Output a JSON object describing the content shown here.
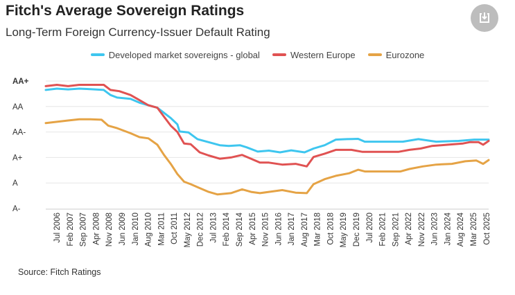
{
  "title": "Fitch's Average Sovereign Ratings",
  "subtitle": "Long-Term Foreign Currency-Issuer Default Rating",
  "source": "Source: Fitch Ratings",
  "download_icon": "download-icon",
  "legend": [
    {
      "label": "Developed market sovereigns - global",
      "color": "#3ec6ef"
    },
    {
      "label": "Western Europe",
      "color": "#e05252"
    },
    {
      "label": "Eurozone",
      "color": "#e5a345"
    }
  ],
  "chart_data": {
    "type": "line",
    "title": "Fitch's Average Sovereign Ratings",
    "subtitle": "Long-Term Foreign Currency-Issuer Default Rating",
    "xlabel": "",
    "ylabel": "",
    "xlim": [
      2006.0,
      2025.85
    ],
    "ylim": [
      0,
      5
    ],
    "y_ticks": [
      {
        "value": 5,
        "label": "AA+"
      },
      {
        "value": 4,
        "label": "AA"
      },
      {
        "value": 3,
        "label": "AA-"
      },
      {
        "value": 2,
        "label": "A+"
      },
      {
        "value": 1,
        "label": "A"
      },
      {
        "value": 0,
        "label": "A-"
      }
    ],
    "x_ticks": [
      {
        "value": 2006.5,
        "label": "Jul 2006"
      },
      {
        "value": 2007.083,
        "label": "Feb 2007"
      },
      {
        "value": 2007.667,
        "label": "Sep 2007"
      },
      {
        "value": 2008.25,
        "label": "Apr 2008"
      },
      {
        "value": 2008.833,
        "label": "Nov 2008"
      },
      {
        "value": 2009.417,
        "label": "Jun 2009"
      },
      {
        "value": 2010.0,
        "label": "Jan 2010"
      },
      {
        "value": 2010.583,
        "label": "Aug 2010"
      },
      {
        "value": 2011.167,
        "label": "Mar 2011"
      },
      {
        "value": 2011.75,
        "label": "Oct 2011"
      },
      {
        "value": 2012.333,
        "label": "May 2012"
      },
      {
        "value": 2012.917,
        "label": "Dec 2012"
      },
      {
        "value": 2013.5,
        "label": "Jul 2013"
      },
      {
        "value": 2014.083,
        "label": "Feb 2014"
      },
      {
        "value": 2014.667,
        "label": "Sep 2014"
      },
      {
        "value": 2015.25,
        "label": "Apr 2015"
      },
      {
        "value": 2015.833,
        "label": "Nov 2015"
      },
      {
        "value": 2016.417,
        "label": "Jun 2016"
      },
      {
        "value": 2017.0,
        "label": "Jan 2017"
      },
      {
        "value": 2017.583,
        "label": "Aug 2017"
      },
      {
        "value": 2018.167,
        "label": "Mar 2018"
      },
      {
        "value": 2018.75,
        "label": "Oct 2018"
      },
      {
        "value": 2019.333,
        "label": "May 2019"
      },
      {
        "value": 2019.917,
        "label": "Dec 2019"
      },
      {
        "value": 2020.5,
        "label": "Jul 2020"
      },
      {
        "value": 2021.083,
        "label": "Feb 2021"
      },
      {
        "value": 2021.667,
        "label": "Sep 2021"
      },
      {
        "value": 2022.25,
        "label": "Apr 2022"
      },
      {
        "value": 2022.833,
        "label": "Nov 2022"
      },
      {
        "value": 2023.417,
        "label": "Jun 2023"
      },
      {
        "value": 2024.0,
        "label": "Jan 2024"
      },
      {
        "value": 2024.583,
        "label": "Aug 2024"
      },
      {
        "value": 2025.167,
        "label": "Mar 2025"
      },
      {
        "value": 2025.75,
        "label": "Oct 2025"
      }
    ],
    "grid": true,
    "legend_position": "top-center",
    "series": [
      {
        "name": "Developed market sovereigns - global",
        "color": "#3ec6ef",
        "points": [
          [
            2006.0,
            4.65
          ],
          [
            2006.5,
            4.7
          ],
          [
            2007.0,
            4.67
          ],
          [
            2007.5,
            4.7
          ],
          [
            2008.0,
            4.68
          ],
          [
            2008.6,
            4.65
          ],
          [
            2008.9,
            4.45
          ],
          [
            2009.2,
            4.35
          ],
          [
            2009.8,
            4.3
          ],
          [
            2010.2,
            4.15
          ],
          [
            2010.6,
            4.05
          ],
          [
            2011.0,
            3.95
          ],
          [
            2011.3,
            3.75
          ],
          [
            2011.6,
            3.55
          ],
          [
            2011.9,
            3.3
          ],
          [
            2012.0,
            3.02
          ],
          [
            2012.4,
            2.98
          ],
          [
            2012.8,
            2.72
          ],
          [
            2013.3,
            2.6
          ],
          [
            2013.8,
            2.48
          ],
          [
            2014.2,
            2.45
          ],
          [
            2014.7,
            2.48
          ],
          [
            2015.0,
            2.4
          ],
          [
            2015.5,
            2.23
          ],
          [
            2016.0,
            2.27
          ],
          [
            2016.5,
            2.2
          ],
          [
            2017.0,
            2.28
          ],
          [
            2017.6,
            2.2
          ],
          [
            2018.0,
            2.35
          ],
          [
            2018.5,
            2.48
          ],
          [
            2019.0,
            2.7
          ],
          [
            2019.5,
            2.72
          ],
          [
            2020.0,
            2.73
          ],
          [
            2020.3,
            2.62
          ],
          [
            2021.0,
            2.62
          ],
          [
            2022.0,
            2.62
          ],
          [
            2022.7,
            2.72
          ],
          [
            2023.5,
            2.62
          ],
          [
            2024.5,
            2.65
          ],
          [
            2025.2,
            2.7
          ],
          [
            2025.85,
            2.7
          ]
        ]
      },
      {
        "name": "Western Europe",
        "color": "#e05252",
        "points": [
          [
            2006.0,
            4.8
          ],
          [
            2006.5,
            4.85
          ],
          [
            2007.0,
            4.8
          ],
          [
            2007.5,
            4.85
          ],
          [
            2008.0,
            4.85
          ],
          [
            2008.6,
            4.85
          ],
          [
            2008.9,
            4.65
          ],
          [
            2009.3,
            4.6
          ],
          [
            2009.8,
            4.45
          ],
          [
            2010.2,
            4.25
          ],
          [
            2010.6,
            4.05
          ],
          [
            2011.0,
            3.95
          ],
          [
            2011.3,
            3.6
          ],
          [
            2011.6,
            3.25
          ],
          [
            2011.9,
            3.0
          ],
          [
            2012.2,
            2.55
          ],
          [
            2012.5,
            2.52
          ],
          [
            2012.9,
            2.2
          ],
          [
            2013.3,
            2.08
          ],
          [
            2013.8,
            1.95
          ],
          [
            2014.3,
            2.0
          ],
          [
            2014.8,
            2.1
          ],
          [
            2015.2,
            1.95
          ],
          [
            2015.6,
            1.8
          ],
          [
            2016.0,
            1.8
          ],
          [
            2016.6,
            1.72
          ],
          [
            2017.2,
            1.75
          ],
          [
            2017.7,
            1.65
          ],
          [
            2018.0,
            2.02
          ],
          [
            2018.5,
            2.15
          ],
          [
            2019.0,
            2.3
          ],
          [
            2019.7,
            2.3
          ],
          [
            2020.2,
            2.22
          ],
          [
            2021.0,
            2.22
          ],
          [
            2021.8,
            2.22
          ],
          [
            2022.3,
            2.3
          ],
          [
            2022.8,
            2.35
          ],
          [
            2023.3,
            2.45
          ],
          [
            2024.0,
            2.5
          ],
          [
            2024.7,
            2.55
          ],
          [
            2025.0,
            2.6
          ],
          [
            2025.4,
            2.6
          ],
          [
            2025.6,
            2.5
          ],
          [
            2025.85,
            2.65
          ]
        ]
      },
      {
        "name": "Eurozone",
        "color": "#e5a345",
        "points": [
          [
            2006.0,
            3.35
          ],
          [
            2006.5,
            3.4
          ],
          [
            2007.0,
            3.45
          ],
          [
            2007.5,
            3.5
          ],
          [
            2008.0,
            3.5
          ],
          [
            2008.5,
            3.48
          ],
          [
            2008.8,
            3.25
          ],
          [
            2009.2,
            3.15
          ],
          [
            2009.8,
            2.95
          ],
          [
            2010.2,
            2.8
          ],
          [
            2010.6,
            2.75
          ],
          [
            2011.0,
            2.5
          ],
          [
            2011.3,
            2.1
          ],
          [
            2011.6,
            1.75
          ],
          [
            2011.9,
            1.35
          ],
          [
            2012.2,
            1.05
          ],
          [
            2012.5,
            0.95
          ],
          [
            2012.9,
            0.8
          ],
          [
            2013.3,
            0.65
          ],
          [
            2013.7,
            0.55
          ],
          [
            2014.3,
            0.6
          ],
          [
            2014.8,
            0.75
          ],
          [
            2015.2,
            0.65
          ],
          [
            2015.6,
            0.6
          ],
          [
            2016.0,
            0.65
          ],
          [
            2016.6,
            0.72
          ],
          [
            2017.2,
            0.62
          ],
          [
            2017.7,
            0.6
          ],
          [
            2018.0,
            0.95
          ],
          [
            2018.5,
            1.15
          ],
          [
            2019.0,
            1.28
          ],
          [
            2019.6,
            1.38
          ],
          [
            2020.0,
            1.52
          ],
          [
            2020.3,
            1.45
          ],
          [
            2021.0,
            1.45
          ],
          [
            2021.9,
            1.45
          ],
          [
            2022.3,
            1.55
          ],
          [
            2022.9,
            1.65
          ],
          [
            2023.5,
            1.72
          ],
          [
            2024.2,
            1.75
          ],
          [
            2024.8,
            1.85
          ],
          [
            2025.3,
            1.88
          ],
          [
            2025.6,
            1.75
          ],
          [
            2025.85,
            1.9
          ]
        ]
      }
    ]
  }
}
